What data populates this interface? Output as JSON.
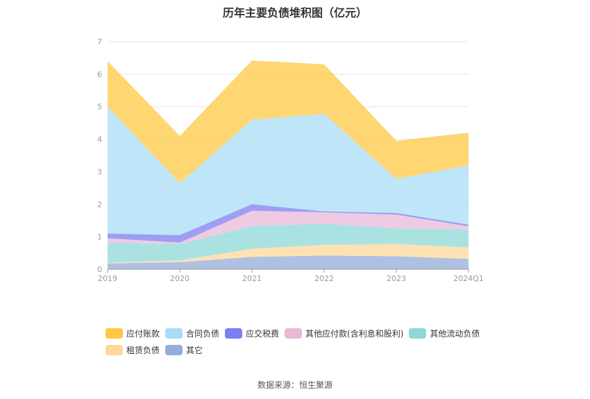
{
  "title": "历年主要负债堆积图（亿元）",
  "source": "数据来源：恒生聚源",
  "chart_data": {
    "type": "area",
    "stacked": true,
    "categories": [
      "2019",
      "2020",
      "2021",
      "2022",
      "2023",
      "2024Q1"
    ],
    "ylim": [
      0,
      7
    ],
    "yticks": [
      "0",
      "1",
      "2",
      "3",
      "4",
      "5",
      "6",
      "7"
    ],
    "grid": true,
    "legend_placement": "bottom",
    "series": [
      {
        "name": "其它",
        "color": "#93acd9",
        "values": [
          0.18,
          0.22,
          0.38,
          0.42,
          0.4,
          0.32
        ]
      },
      {
        "name": "租赁负债",
        "color": "#fdd89a",
        "values": [
          0.02,
          0.05,
          0.25,
          0.33,
          0.38,
          0.35
        ]
      },
      {
        "name": "其他流动负债",
        "color": "#8ed8d8",
        "values": [
          0.62,
          0.5,
          0.7,
          0.65,
          0.48,
          0.55
        ]
      },
      {
        "name": "其他应付款(含利息和股利)",
        "color": "#e8b9d9",
        "values": [
          0.13,
          0.05,
          0.47,
          0.35,
          0.42,
          0.1
        ]
      },
      {
        "name": "应交税费",
        "color": "#7b7ff0",
        "values": [
          0.15,
          0.23,
          0.2,
          0.03,
          0.05,
          0.05
        ]
      },
      {
        "name": "合同负债",
        "color": "#a9dcf7",
        "values": [
          3.9,
          1.6,
          2.6,
          3.0,
          1.05,
          1.83
        ]
      },
      {
        "name": "应付账款",
        "color": "#fec843",
        "values": [
          1.4,
          1.45,
          1.82,
          1.52,
          1.17,
          1.0
        ]
      }
    ]
  },
  "legend_rows": [
    [
      "应付账款",
      "合同负债",
      "应交税费",
      "其他应付款(含利息和股利)",
      "其他流动负债"
    ],
    [
      "租赁负债",
      "其它"
    ]
  ]
}
